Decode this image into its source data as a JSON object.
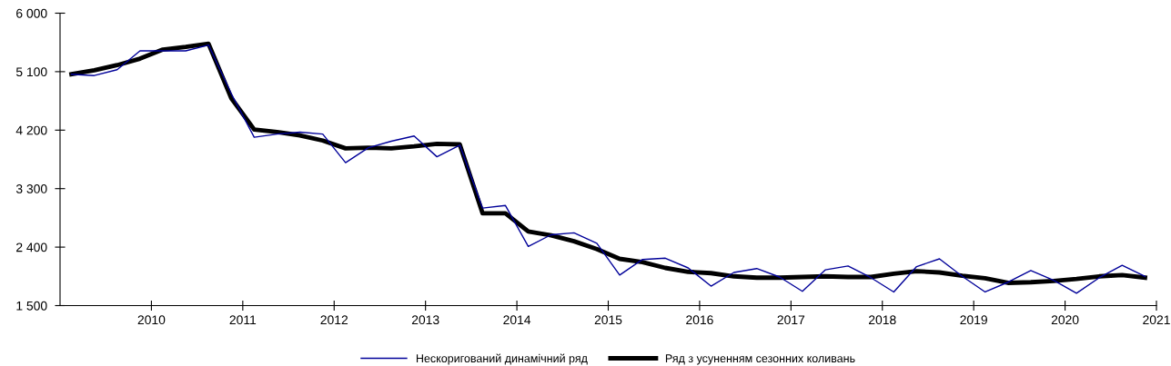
{
  "chart_data": {
    "type": "line",
    "x": [
      2009.125,
      2009.375,
      2009.625,
      2009.875,
      2010.125,
      2010.375,
      2010.625,
      2010.875,
      2011.125,
      2011.375,
      2011.625,
      2011.875,
      2012.125,
      2012.375,
      2012.625,
      2012.875,
      2013.125,
      2013.375,
      2013.625,
      2013.875,
      2014.125,
      2014.375,
      2014.625,
      2014.875,
      2015.125,
      2015.375,
      2015.625,
      2015.875,
      2016.125,
      2016.375,
      2016.625,
      2016.875,
      2017.125,
      2017.375,
      2017.625,
      2017.875,
      2018.125,
      2018.375,
      2018.625,
      2018.875,
      2019.125,
      2019.375,
      2019.625,
      2019.875,
      2020.125,
      2020.375,
      2020.625,
      2020.875
    ],
    "series": [
      {
        "name": "Нескоригований динамічний ряд",
        "color": "#000099",
        "values": [
          5060,
          5040,
          5130,
          5420,
          5420,
          5420,
          5510,
          4760,
          4090,
          4140,
          4170,
          4140,
          3700,
          3930,
          4030,
          4110,
          3790,
          3970,
          3000,
          3040,
          2410,
          2590,
          2620,
          2460,
          1970,
          2210,
          2230,
          2080,
          1800,
          2010,
          2070,
          1940,
          1720,
          2050,
          2110,
          1930,
          1710,
          2100,
          2220,
          1950,
          1710,
          1860,
          2040,
          1890,
          1690,
          1930,
          2120,
          1950
        ]
      },
      {
        "name": "Ряд з усуненням сезонних коливань",
        "color": "#000000",
        "values": [
          5060,
          5120,
          5200,
          5300,
          5440,
          5480,
          5530,
          4690,
          4210,
          4170,
          4120,
          4040,
          3920,
          3930,
          3920,
          3950,
          3990,
          3980,
          2920,
          2920,
          2640,
          2580,
          2490,
          2370,
          2220,
          2170,
          2080,
          2020,
          2000,
          1950,
          1930,
          1930,
          1940,
          1950,
          1940,
          1940,
          1990,
          2030,
          2010,
          1960,
          1920,
          1850,
          1860,
          1880,
          1910,
          1950,
          1970,
          1930
        ]
      }
    ],
    "xlim": [
      2009,
      2021
    ],
    "xticks": [
      2010,
      2011,
      2012,
      2013,
      2014,
      2015,
      2016,
      2017,
      2018,
      2019,
      2020,
      2021
    ],
    "ylim": [
      1500,
      6000
    ],
    "yticks": [
      {
        "value": 1500,
        "label": "1 500"
      },
      {
        "value": 2400,
        "label": "2 400"
      },
      {
        "value": 3300,
        "label": "3 300"
      },
      {
        "value": 4200,
        "label": "4 200"
      },
      {
        "value": 5100,
        "label": "5 100"
      },
      {
        "value": 6000,
        "label": "6 000"
      }
    ],
    "grid": false,
    "legend": "bottom",
    "marker": "none",
    "line_style": "solid"
  }
}
